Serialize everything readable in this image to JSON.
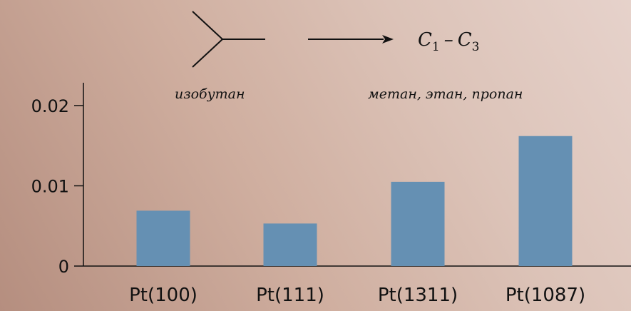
{
  "reaction": {
    "arrow_icon": "right-arrow-icon",
    "molecule_icon": "isobutane-skeletal-icon",
    "reactant_label": "изобутан",
    "product_formula_c": "C",
    "product_sub_1": "1",
    "product_dash": "–",
    "product_sub_2": "3",
    "product_label": "метан, этан, пропан"
  },
  "chart_data": {
    "type": "bar",
    "categories": [
      "Pt(100)",
      "Pt(111)",
      "Pt(1311)",
      "Pt(1087)"
    ],
    "values": [
      0.0069,
      0.0053,
      0.0105,
      0.0162
    ],
    "ylim": [
      0,
      0.022
    ],
    "yticks": [
      0,
      0.01,
      0.02
    ],
    "ytick_labels": [
      "0",
      "0.01",
      "0.02"
    ],
    "bar_color": "#6590b3",
    "grid": false,
    "legend": "none"
  }
}
